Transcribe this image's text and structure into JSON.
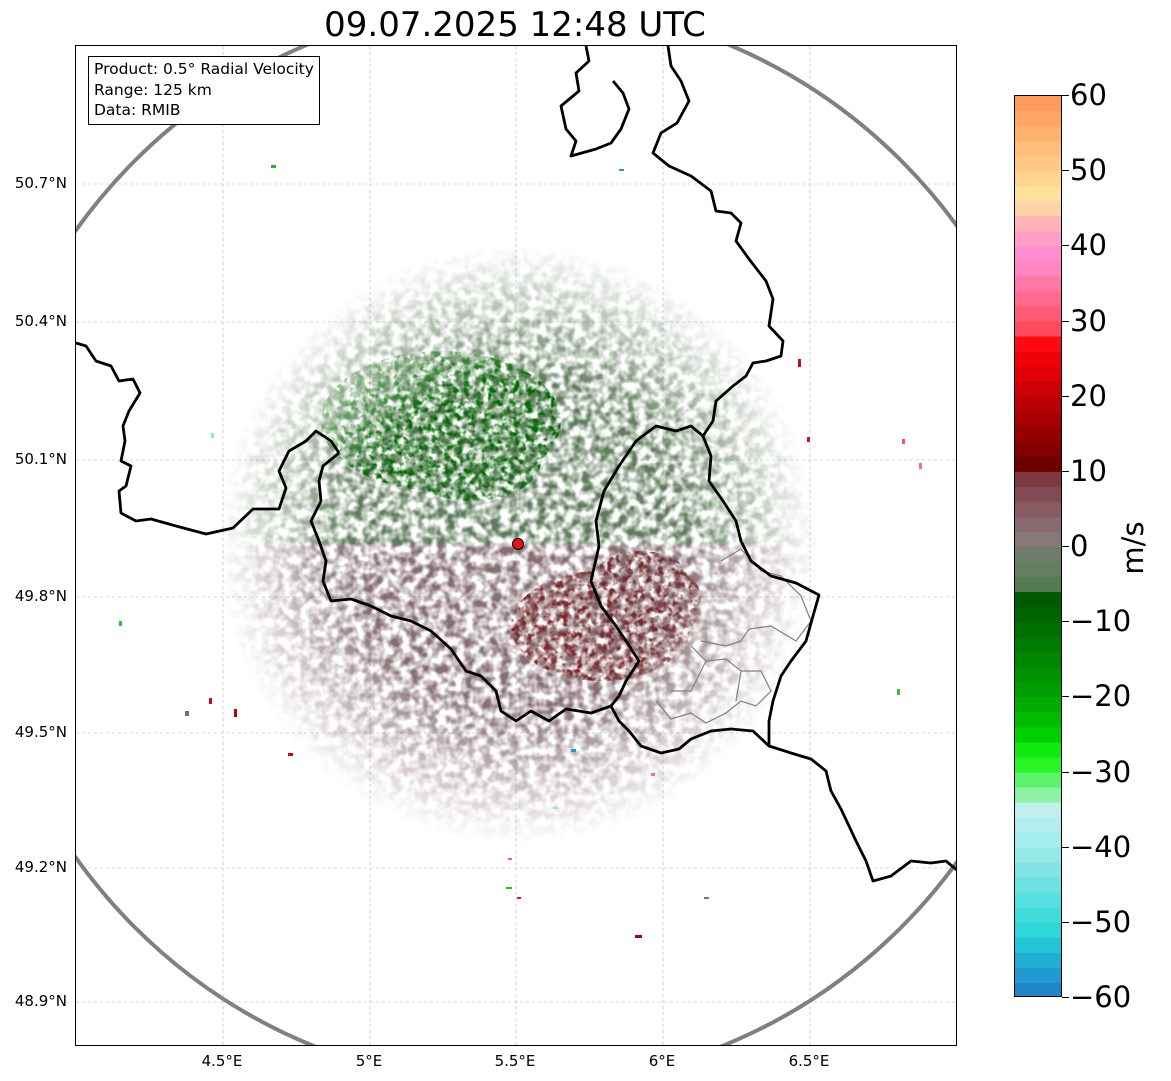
{
  "title": "09.07.2025 12:48 UTC",
  "info": {
    "product": "Product: 0.5° Radial Velocity",
    "range": "Range: 125 km",
    "data": "Data: RMIB"
  },
  "axes": {
    "lon_range": [
      4.0,
      7.02
    ],
    "lat_range": [
      48.8,
      50.98
    ],
    "x_ticks": [
      {
        "lon": 4.5,
        "label": "4.5°E"
      },
      {
        "lon": 5.0,
        "label": "5°E"
      },
      {
        "lon": 5.5,
        "label": "5.5°E"
      },
      {
        "lon": 6.0,
        "label": "6°E"
      },
      {
        "lon": 6.5,
        "label": "6.5°E"
      }
    ],
    "y_ticks": [
      {
        "lat": 50.7,
        "label": "50.7°N"
      },
      {
        "lat": 50.4,
        "label": "50.4°N"
      },
      {
        "lat": 50.1,
        "label": "50.1°N"
      },
      {
        "lat": 49.8,
        "label": "49.8°N"
      },
      {
        "lat": 49.5,
        "label": "49.5°N"
      },
      {
        "lat": 49.2,
        "label": "49.2°N"
      },
      {
        "lat": 48.9,
        "label": "48.9°N"
      }
    ],
    "grid": true
  },
  "radar": {
    "site": {
      "lon": 5.505,
      "lat": 49.914
    },
    "range_km": 125
  },
  "colorbar": {
    "unit": "m/s",
    "min": -60,
    "max": 60,
    "ticks": [
      {
        "value": 60,
        "label": "60"
      },
      {
        "value": 50,
        "label": "50"
      },
      {
        "value": 40,
        "label": "40"
      },
      {
        "value": 30,
        "label": "30"
      },
      {
        "value": 20,
        "label": "20"
      },
      {
        "value": 10,
        "label": "10"
      },
      {
        "value": 0,
        "label": "0"
      },
      {
        "value": -10,
        "label": "−10"
      },
      {
        "value": -20,
        "label": "−20"
      },
      {
        "value": -30,
        "label": "−30"
      },
      {
        "value": -40,
        "label": "−40"
      },
      {
        "value": -50,
        "label": "−50"
      },
      {
        "value": -60,
        "label": "−60"
      }
    ],
    "segments": [
      {
        "from": 58,
        "to": 60,
        "color": "#ff9a5a"
      },
      {
        "from": 56,
        "to": 58,
        "color": "#ffa665"
      },
      {
        "from": 54,
        "to": 56,
        "color": "#ffb26f"
      },
      {
        "from": 52,
        "to": 54,
        "color": "#ffbe79"
      },
      {
        "from": 50,
        "to": 52,
        "color": "#ffc884"
      },
      {
        "from": 48,
        "to": 50,
        "color": "#ffd690"
      },
      {
        "from": 46,
        "to": 48,
        "color": "#ffe39c"
      },
      {
        "from": 44,
        "to": 46,
        "color": "#ffd3a8"
      },
      {
        "from": 42,
        "to": 44,
        "color": "#ffb5b7"
      },
      {
        "from": 40,
        "to": 42,
        "color": "#ff9fc8"
      },
      {
        "from": 38,
        "to": 40,
        "color": "#ff8fd0"
      },
      {
        "from": 36,
        "to": 38,
        "color": "#ff86c0"
      },
      {
        "from": 34,
        "to": 36,
        "color": "#ff78a8"
      },
      {
        "from": 32,
        "to": 34,
        "color": "#ff6a8e"
      },
      {
        "from": 30,
        "to": 32,
        "color": "#ff5a76"
      },
      {
        "from": 28,
        "to": 30,
        "color": "#ff4a5e"
      },
      {
        "from": 26,
        "to": 28,
        "color": "#ff0a12"
      },
      {
        "from": 24,
        "to": 26,
        "color": "#f00008"
      },
      {
        "from": 22,
        "to": 24,
        "color": "#e00008"
      },
      {
        "from": 20,
        "to": 22,
        "color": "#cc0006"
      },
      {
        "from": 18,
        "to": 20,
        "color": "#b80004"
      },
      {
        "from": 16,
        "to": 18,
        "color": "#a60002"
      },
      {
        "from": 14,
        "to": 16,
        "color": "#940000"
      },
      {
        "from": 12,
        "to": 14,
        "color": "#820000"
      },
      {
        "from": 10,
        "to": 12,
        "color": "#6e0000"
      },
      {
        "from": 8,
        "to": 10,
        "color": "#7c3a40"
      },
      {
        "from": 6,
        "to": 8,
        "color": "#824a52"
      },
      {
        "from": 4,
        "to": 6,
        "color": "#895a62"
      },
      {
        "from": 2,
        "to": 4,
        "color": "#886a72"
      },
      {
        "from": 0,
        "to": 2,
        "color": "#867978"
      },
      {
        "from": -2,
        "to": 0,
        "color": "#6f7e6a"
      },
      {
        "from": -4,
        "to": -2,
        "color": "#62805e"
      },
      {
        "from": -6,
        "to": -4,
        "color": "#557a52"
      },
      {
        "from": -8,
        "to": -6,
        "color": "#005a00"
      },
      {
        "from": -10,
        "to": -8,
        "color": "#006400"
      },
      {
        "from": -12,
        "to": -10,
        "color": "#006e00"
      },
      {
        "from": -14,
        "to": -12,
        "color": "#007a00"
      },
      {
        "from": -16,
        "to": -14,
        "color": "#008600"
      },
      {
        "from": -18,
        "to": -16,
        "color": "#009200"
      },
      {
        "from": -20,
        "to": -18,
        "color": "#009e00"
      },
      {
        "from": -22,
        "to": -20,
        "color": "#00ac00"
      },
      {
        "from": -24,
        "to": -22,
        "color": "#00bc00"
      },
      {
        "from": -26,
        "to": -24,
        "color": "#00d000"
      },
      {
        "from": -28,
        "to": -26,
        "color": "#10e810"
      },
      {
        "from": -30,
        "to": -28,
        "color": "#28f428"
      },
      {
        "from": -32,
        "to": -30,
        "color": "#5cf26c"
      },
      {
        "from": -34,
        "to": -32,
        "color": "#8ef2a4"
      },
      {
        "from": -36,
        "to": -34,
        "color": "#bff0ee"
      },
      {
        "from": -38,
        "to": -36,
        "color": "#b2eeee"
      },
      {
        "from": -40,
        "to": -38,
        "color": "#a5ecec"
      },
      {
        "from": -42,
        "to": -40,
        "color": "#94e8e8"
      },
      {
        "from": -44,
        "to": -42,
        "color": "#82e5e5"
      },
      {
        "from": -46,
        "to": -44,
        "color": "#6de2e2"
      },
      {
        "from": -48,
        "to": -46,
        "color": "#56dfe0"
      },
      {
        "from": -50,
        "to": -48,
        "color": "#40dcdc"
      },
      {
        "from": -52,
        "to": -50,
        "color": "#2ed8d8"
      },
      {
        "from": -54,
        "to": -52,
        "color": "#22c4d6"
      },
      {
        "from": -56,
        "to": -54,
        "color": "#20aed4"
      },
      {
        "from": -58,
        "to": -56,
        "color": "#209ad0"
      },
      {
        "from": -60,
        "to": -58,
        "color": "#1f86c8"
      }
    ]
  },
  "styles": {
    "range_ring_color": "#808080",
    "border_color": "#000000",
    "region_border_color": "#808080",
    "grid_color": "#b0b0b0",
    "site_marker_color": "#e8141c"
  }
}
